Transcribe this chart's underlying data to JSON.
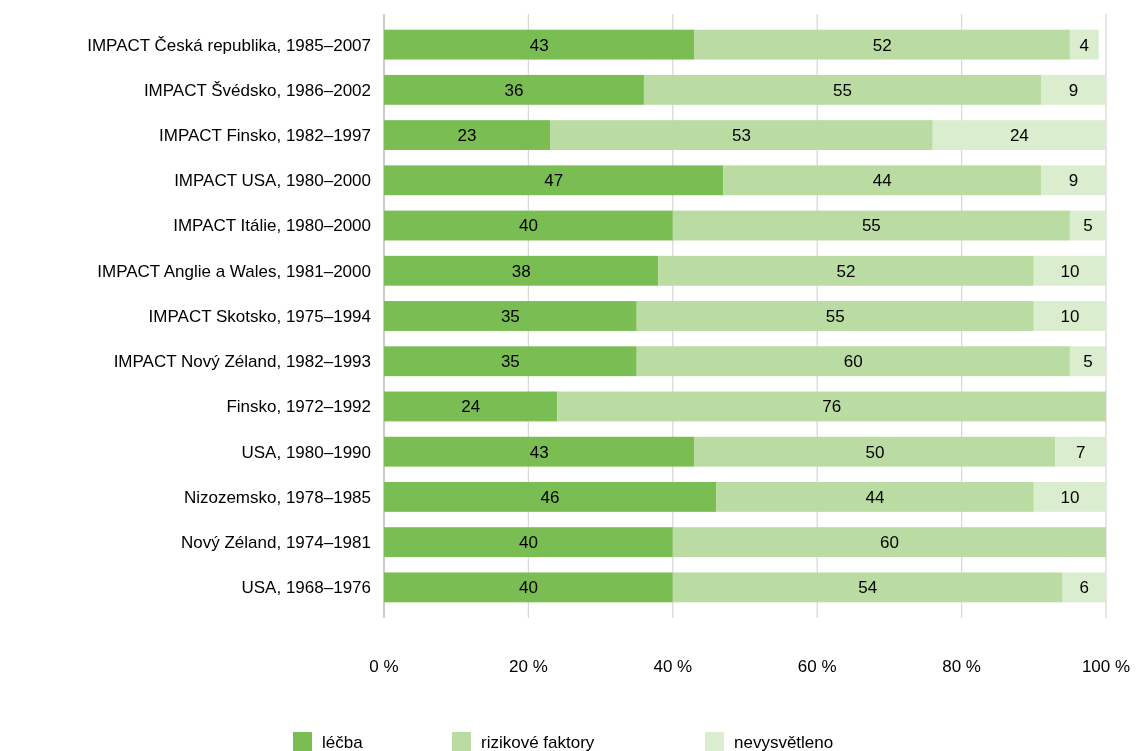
{
  "chart_data": {
    "type": "bar",
    "orientation": "horizontal",
    "stacked": true,
    "data_labels": true,
    "grid": "x",
    "legend": "bottom",
    "categories": [
      "IMPACT Česká republika, 1985–2007",
      "IMPACT Švédsko, 1986–2002",
      "IMPACT Finsko, 1982–1997",
      "IMPACT USA, 1980–2000",
      "IMPACT Itálie, 1980–2000",
      "IMPACT Anglie a Wales, 1981–2000",
      "IMPACT Skotsko, 1975–1994",
      "IMPACT Nový Zéland, 1982–1993",
      "Finsko, 1972–1992",
      "USA, 1980–1990",
      "Nizozemsko, 1978–1985",
      "Nový Zéland, 1974–1981",
      "USA, 1968–1976"
    ],
    "series": [
      {
        "name": "léčba",
        "color": "#7abd53",
        "values": [
          43,
          36,
          23,
          47,
          40,
          38,
          35,
          35,
          24,
          43,
          46,
          40,
          40
        ]
      },
      {
        "name": "rizikové faktory",
        "color": "#badba1",
        "values": [
          52,
          55,
          53,
          44,
          55,
          52,
          55,
          60,
          76,
          50,
          44,
          60,
          54
        ]
      },
      {
        "name": "nevysvětleno",
        "color": "#dbedcf",
        "values": [
          4,
          9,
          24,
          9,
          5,
          10,
          10,
          5,
          null,
          7,
          10,
          null,
          6
        ]
      }
    ],
    "xlim": [
      0,
      100
    ],
    "xticks": [
      {
        "value": 0,
        "label": "0 %"
      },
      {
        "value": 20,
        "label": "20 %"
      },
      {
        "value": 40,
        "label": "40 %"
      },
      {
        "value": 60,
        "label": "60 %"
      },
      {
        "value": 80,
        "label": "80 %"
      },
      {
        "value": 100,
        "label": "100 %"
      }
    ]
  }
}
